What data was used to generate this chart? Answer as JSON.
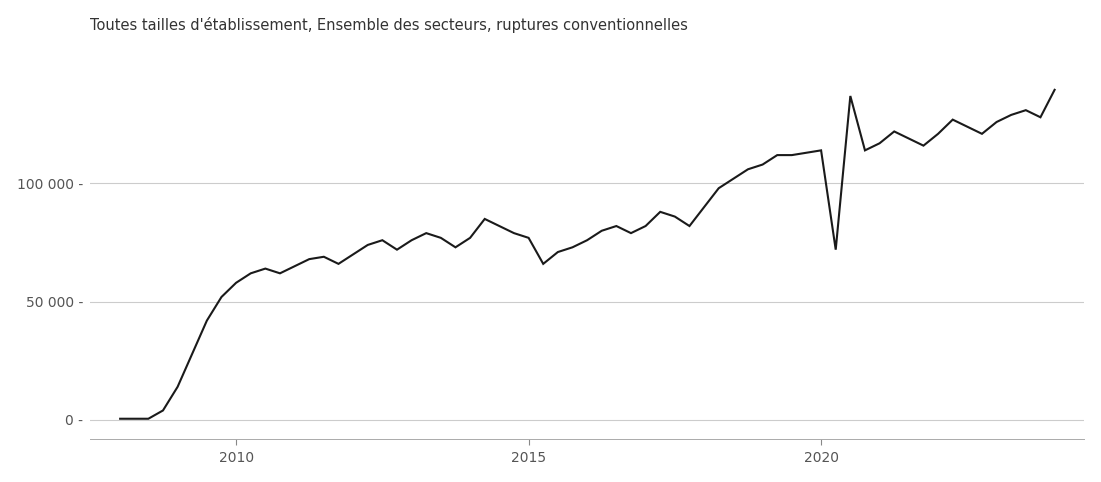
{
  "title": "Toutes tailles d'établissement, Ensemble des secteurs, ruptures conventionnelles",
  "x_values": [
    2008.0,
    2008.25,
    2008.5,
    2008.75,
    2009.0,
    2009.25,
    2009.5,
    2009.75,
    2010.0,
    2010.25,
    2010.5,
    2010.75,
    2011.0,
    2011.25,
    2011.5,
    2011.75,
    2012.0,
    2012.25,
    2012.5,
    2012.75,
    2013.0,
    2013.25,
    2013.5,
    2013.75,
    2014.0,
    2014.25,
    2014.5,
    2014.75,
    2015.0,
    2015.25,
    2015.5,
    2015.75,
    2016.0,
    2016.25,
    2016.5,
    2016.75,
    2017.0,
    2017.25,
    2017.5,
    2017.75,
    2018.0,
    2018.25,
    2018.5,
    2018.75,
    2019.0,
    2019.25,
    2019.5,
    2019.75,
    2020.0,
    2020.25,
    2020.5,
    2020.75,
    2021.0,
    2021.25,
    2021.5,
    2021.75,
    2022.0,
    2022.25,
    2022.5,
    2022.75,
    2023.0,
    2023.25,
    2023.5,
    2023.75,
    2024.0
  ],
  "y_values": [
    500,
    500,
    500,
    4000,
    14000,
    28000,
    42000,
    52000,
    58000,
    62000,
    64000,
    62000,
    65000,
    68000,
    69000,
    66000,
    70000,
    74000,
    76000,
    72000,
    76000,
    79000,
    77000,
    73000,
    77000,
    85000,
    82000,
    79000,
    77000,
    66000,
    71000,
    73000,
    76000,
    80000,
    82000,
    79000,
    82000,
    88000,
    86000,
    82000,
    90000,
    98000,
    102000,
    106000,
    108000,
    112000,
    112000,
    113000,
    114000,
    72000,
    137000,
    114000,
    117000,
    122000,
    119000,
    116000,
    121000,
    127000,
    124000,
    121000,
    126000,
    129000,
    131000,
    128000,
    140000
  ],
  "xlabel": "",
  "ylabel": "",
  "yticks": [
    0,
    50000,
    100000
  ],
  "ytick_labels": [
    "0 -",
    "50 000 -",
    "100 000 -"
  ],
  "xticks": [
    2010,
    2015,
    2020
  ],
  "ylim": [
    -8000,
    158000
  ],
  "xlim": [
    2007.5,
    2024.5
  ],
  "line_color": "#1a1a1a",
  "line_width": 1.5,
  "background_color": "#ffffff",
  "title_fontsize": 10.5,
  "grid_color": "#cccccc",
  "tick_fontsize": 10
}
